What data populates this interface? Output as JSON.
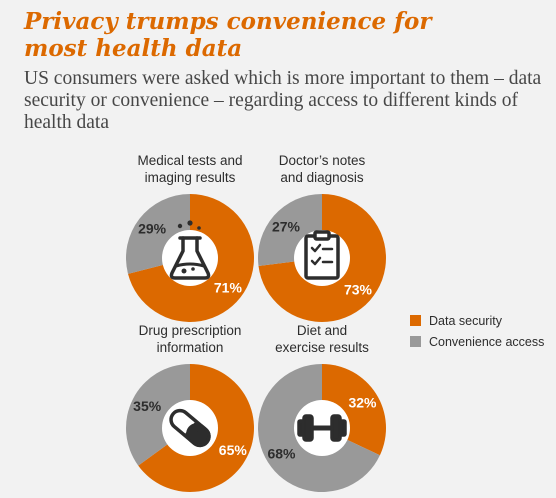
{
  "title_line1": "Privacy trumps convenience for",
  "title_line2": "most health data",
  "subtitle": "US consumers were asked which is more important to them – data security or convenience – regarding access to different kinds of health data",
  "colors": {
    "data_security": "#dc6900",
    "convenience_access": "#999999",
    "background": "#f2f2f2"
  },
  "legend": [
    {
      "label": "Data security",
      "color": "#dc6900"
    },
    {
      "label": "Convenience access",
      "color": "#999999"
    }
  ],
  "chart_data": [
    {
      "type": "pie",
      "title_line1": "Medical tests and",
      "title_line2": "imaging results",
      "categories": [
        "Data security",
        "Convenience access"
      ],
      "values": [
        71,
        29
      ],
      "value_labels": [
        "71%",
        "29%"
      ],
      "icon": "flask-icon"
    },
    {
      "type": "pie",
      "title_line1": "Doctor’s notes",
      "title_line2": "and diagnosis",
      "categories": [
        "Data security",
        "Convenience access"
      ],
      "values": [
        73,
        27
      ],
      "value_labels": [
        "73%",
        "27%"
      ],
      "icon": "clipboard-icon"
    },
    {
      "type": "pie",
      "title_line1": "Drug prescription",
      "title_line2": "information",
      "categories": [
        "Data security",
        "Convenience access"
      ],
      "values": [
        65,
        35
      ],
      "value_labels": [
        "65%",
        "35%"
      ],
      "icon": "pill-icon"
    },
    {
      "type": "pie",
      "title_line1": "Diet and",
      "title_line2": "exercise results",
      "categories": [
        "Data security",
        "Convenience access"
      ],
      "values": [
        32,
        68
      ],
      "value_labels": [
        "32%",
        "68%"
      ],
      "icon": "dumbbell-icon"
    }
  ]
}
